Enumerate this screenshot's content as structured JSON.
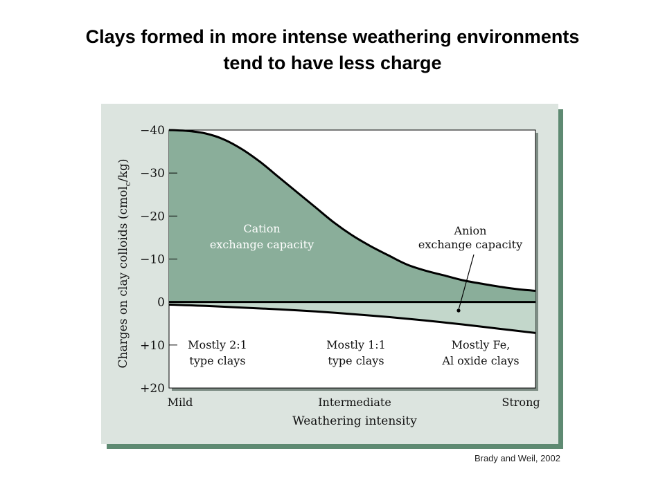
{
  "slide": {
    "title_line1": "Clays formed in more intense weathering environments",
    "title_line2": "tend to have less charge",
    "citation": "Brady and Weil, 2002"
  },
  "colors": {
    "panel": "#dce4df",
    "panel_shadow": "#5e8a72",
    "cec_fill": "#8aae9a",
    "aec_fill": "#c3d7cb",
    "line": "#000000"
  },
  "chart_data": {
    "type": "area",
    "xlabel": "Weathering intensity",
    "ylabel_parts": [
      "Charges on clay colloids (cmol",
      "c",
      "/kg)"
    ],
    "x_tick_labels": [
      "Mild",
      "Intermediate",
      "Strong"
    ],
    "x_tick_positions": [
      0,
      0.5,
      1
    ],
    "y_ticks": [
      -40,
      -30,
      -20,
      -10,
      0,
      10,
      20
    ],
    "y_tick_labels": [
      "−40",
      "−30",
      "−20",
      "−10",
      "0",
      "+10",
      "+20"
    ],
    "ylim": [
      -40,
      20
    ],
    "xlim": [
      0,
      1
    ],
    "series": [
      {
        "name": "Cation exchange capacity",
        "x": [
          0,
          0.05,
          0.1,
          0.15,
          0.2,
          0.25,
          0.3,
          0.35,
          0.4,
          0.45,
          0.5,
          0.55,
          0.6,
          0.65,
          0.7,
          0.75,
          0.8,
          0.85,
          0.9,
          0.95,
          1.0
        ],
        "y": [
          -40,
          -39.8,
          -39.2,
          -37.8,
          -35.5,
          -32.5,
          -29,
          -25.5,
          -22,
          -18.5,
          -15.5,
          -13,
          -10.8,
          -8.7,
          -7.3,
          -6.2,
          -5.1,
          -4.3,
          -3.6,
          -3.0,
          -2.6
        ]
      },
      {
        "name": "Anion exchange capacity",
        "x": [
          0,
          0.1,
          0.2,
          0.3,
          0.4,
          0.5,
          0.6,
          0.7,
          0.8,
          0.9,
          1.0
        ],
        "y": [
          0.6,
          0.9,
          1.3,
          1.7,
          2.2,
          2.8,
          3.5,
          4.3,
          5.2,
          6.2,
          7.2
        ]
      }
    ],
    "annotations": {
      "cec_line1": "Cation",
      "cec_line2": "exchange capacity",
      "aec_line1": "Anion",
      "aec_line2": "exchange capacity",
      "clay1_line1": "Mostly 2:1",
      "clay1_line2": "type clays",
      "clay2_line1": "Mostly 1:1",
      "clay2_line2": "type clays",
      "clay3_line1": "Mostly Fe,",
      "clay3_line2": "Al oxide clays"
    },
    "grid": false,
    "legend": "none"
  }
}
